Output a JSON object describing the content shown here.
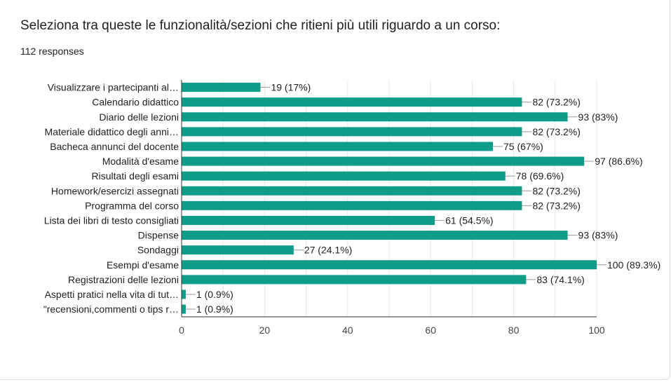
{
  "header": {
    "question": "Seleziona tra queste le funzionalità/sezioni che ritieni più utili riguardo a un corso:",
    "responses": "112 responses"
  },
  "colors": {
    "bar": "#0f9d8a",
    "axis": "#333333",
    "grid": "#e6e6e6",
    "text": "#202124"
  },
  "chart_data": {
    "type": "bar",
    "orientation": "horizontal",
    "categories": [
      "Visualizzare i partecipanti al…",
      "Calendario didattico",
      "Diario delle lezioni",
      "Materiale didattico degli anni…",
      "Bacheca annunci del docente",
      "Modalità d'esame",
      "Risultati degli esami",
      "Homework/esercizi assegnati",
      "Programma del corso",
      "Lista dei libri di testo consigliati",
      "Dispense",
      "Sondaggi",
      "Esempi d'esame",
      "Registrazioni delle lezioni",
      "Aspetti pratici nella vita di tut…",
      "\"recensioni,commenti o tips r…"
    ],
    "values": [
      19,
      82,
      93,
      82,
      75,
      97,
      78,
      82,
      82,
      61,
      93,
      27,
      100,
      83,
      1,
      1
    ],
    "data_labels": [
      "19 (17%)",
      "82 (73.2%)",
      "93 (83%)",
      "82 (73.2%)",
      "75 (67%)",
      "97 (86.6%)",
      "78 (69.6%)",
      "82 (73.2%)",
      "82 (73.2%)",
      "61 (54.5%)",
      "93 (83%)",
      "27 (24.1%)",
      "100 (89.3%)",
      "83 (74.1%)",
      "1 (0.9%)",
      "1 (0.9%)"
    ],
    "xlim": [
      0,
      100
    ],
    "xticks": [
      0,
      20,
      40,
      60,
      80,
      100
    ],
    "xtick_labels": [
      "0",
      "20",
      "40",
      "60",
      "80",
      "100"
    ],
    "grid": true
  }
}
